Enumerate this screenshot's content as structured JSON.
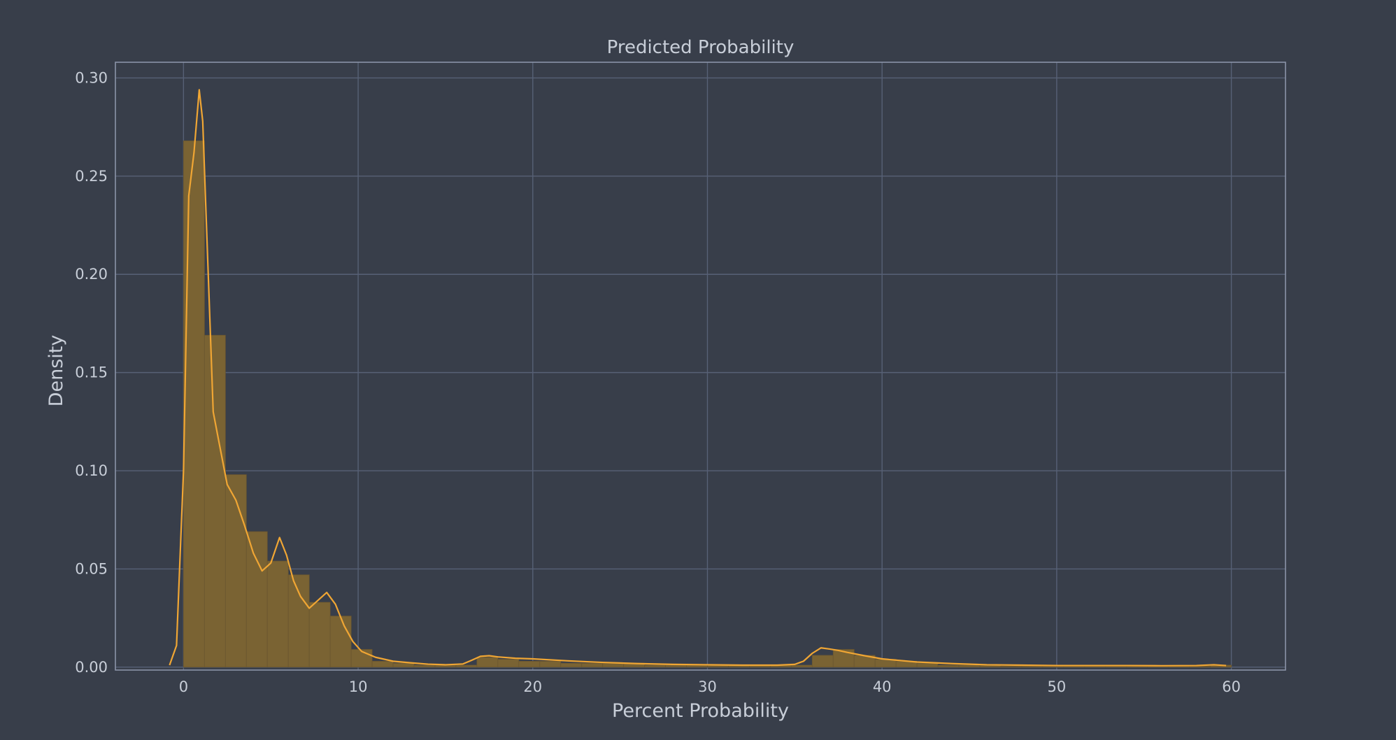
{
  "chart_data": {
    "type": "bar",
    "title": "Predicted Probability",
    "xlabel": "Percent Probability",
    "ylabel": "Density",
    "xlim": [
      -3.9,
      63.1
    ],
    "ylim": [
      -0.0015,
      0.308
    ],
    "xticks": [
      0,
      10,
      20,
      30,
      40,
      50,
      60
    ],
    "xtick_labels": [
      "0",
      "10",
      "20",
      "30",
      "40",
      "50",
      "60"
    ],
    "yticks": [
      0.0,
      0.05,
      0.1,
      0.15,
      0.2,
      0.25,
      0.3
    ],
    "ytick_labels": [
      "0.00",
      "0.05",
      "0.10",
      "0.15",
      "0.20",
      "0.25",
      "0.30"
    ],
    "grid": true,
    "colors": {
      "background": "#383e4a",
      "grid": "#576176",
      "spine": "#8a94a8",
      "text": "#c8ced8",
      "bar_fill": "#7a6333",
      "bar_edge": "#6a5630",
      "kde_line": "#f0a634"
    },
    "histogram": {
      "name": "",
      "bin_edges": [
        0.0,
        1.2,
        2.4,
        3.6,
        4.8,
        6.0,
        7.2,
        8.4,
        9.6,
        10.8,
        12.0,
        13.2,
        14.4,
        15.6,
        16.8,
        18.0,
        19.2,
        20.4,
        21.6,
        22.8,
        24.0,
        25.2,
        26.4,
        27.6,
        28.8,
        30.0,
        31.2,
        32.4,
        33.6,
        34.8,
        36.0,
        37.2,
        38.4,
        39.6,
        40.8,
        42.0,
        43.2,
        44.4,
        45.6,
        46.8,
        48.0,
        49.2,
        50.4,
        51.6,
        52.8,
        54.0,
        55.2,
        56.4,
        57.6,
        58.8,
        60.0
      ],
      "densities": [
        0.268,
        0.169,
        0.098,
        0.069,
        0.054,
        0.047,
        0.033,
        0.026,
        0.009,
        0.003,
        0.002,
        0.001,
        0.001,
        0.001,
        0.005,
        0.004,
        0.003,
        0.003,
        0.002,
        0.002,
        0.002,
        0.002,
        0.001,
        0.001,
        0.001,
        0.001,
        0.001,
        0.001,
        0.001,
        0.001,
        0.006,
        0.009,
        0.006,
        0.004,
        0.003,
        0.002,
        0.001,
        0.001,
        0.001,
        0.0005,
        0.0005,
        0.0005,
        0.0005,
        0.0005,
        0.0005,
        0.0005,
        0.0005,
        0.0005,
        0.0005,
        0.001
      ]
    },
    "kde": {
      "name": "",
      "x": [
        -0.8,
        -0.4,
        0.0,
        0.3,
        0.6,
        0.9,
        1.1,
        1.4,
        1.7,
        2.0,
        2.5,
        3.0,
        3.5,
        4.0,
        4.5,
        5.0,
        5.5,
        5.9,
        6.3,
        6.7,
        7.2,
        7.7,
        8.2,
        8.7,
        9.2,
        9.7,
        10.2,
        11.0,
        12.0,
        13.0,
        14.0,
        15.0,
        16.0,
        16.5,
        17.0,
        17.5,
        18.0,
        19.0,
        20.0,
        22.0,
        24.0,
        26.0,
        28.0,
        30.0,
        32.0,
        34.0,
        35.0,
        35.5,
        36.0,
        36.5,
        37.0,
        37.5,
        38.0,
        39.0,
        40.0,
        42.0,
        44.0,
        46.0,
        48.0,
        50.0,
        52.0,
        54.0,
        56.0,
        58.0,
        59.0,
        59.7
      ],
      "y": [
        0.001,
        0.011,
        0.1,
        0.24,
        0.262,
        0.294,
        0.278,
        0.204,
        0.13,
        0.116,
        0.093,
        0.085,
        0.072,
        0.058,
        0.049,
        0.053,
        0.066,
        0.057,
        0.044,
        0.036,
        0.03,
        0.034,
        0.038,
        0.032,
        0.021,
        0.013,
        0.008,
        0.005,
        0.003,
        0.0022,
        0.0015,
        0.0012,
        0.0016,
        0.0035,
        0.0055,
        0.0058,
        0.0052,
        0.0045,
        0.0042,
        0.0032,
        0.0024,
        0.0018,
        0.0014,
        0.0012,
        0.001,
        0.001,
        0.0014,
        0.003,
        0.007,
        0.0098,
        0.0092,
        0.0085,
        0.0075,
        0.0058,
        0.0042,
        0.0026,
        0.0018,
        0.0012,
        0.001,
        0.0008,
        0.0008,
        0.0008,
        0.0007,
        0.0008,
        0.0012,
        0.0008
      ]
    }
  }
}
